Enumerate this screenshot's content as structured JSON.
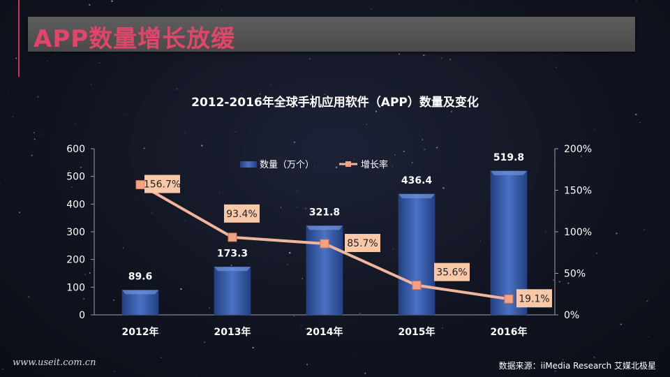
{
  "page": {
    "title": "APP数量增长放缓",
    "footer_left": "www.useit.com.cn",
    "footer_right": "数据来源：iiMedia Research 艾媒北极星"
  },
  "colors": {
    "title_text": "#e2456a",
    "accent_line": "#c8365c",
    "bar_fill": "#3b5fad",
    "line_stroke": "#f0b59b",
    "marker_fill": "#f6a184",
    "label_box": "#f8c8a8"
  },
  "chart_data": {
    "type": "bar+line",
    "title": "2012-2016年全球手机应用软件（APP）数量及变化",
    "categories": [
      "2012年",
      "2013年",
      "2014年",
      "2015年",
      "2016年"
    ],
    "series": [
      {
        "name": "数量（万个）",
        "type": "bar",
        "axis": "left",
        "values": [
          89.6,
          173.3,
          321.8,
          436.4,
          519.8
        ],
        "labels": [
          "89.6",
          "173.3",
          "321.8",
          "436.4",
          "519.8"
        ]
      },
      {
        "name": "增长率",
        "type": "line",
        "axis": "right",
        "values": [
          156.7,
          93.4,
          85.7,
          35.6,
          19.1
        ],
        "labels": [
          "156.7%",
          "93.4%",
          "85.7%",
          "35.6%",
          "19.1%"
        ]
      }
    ],
    "y_left": {
      "ylim": [
        0,
        600
      ],
      "ticks": [
        "0",
        "100",
        "200",
        "300",
        "400",
        "500",
        "600"
      ]
    },
    "y_right": {
      "ylim": [
        0,
        200
      ],
      "ticks": [
        "0%",
        "50%",
        "100%",
        "150%",
        "200%"
      ]
    },
    "legend_position": "top-center",
    "grid": false
  }
}
